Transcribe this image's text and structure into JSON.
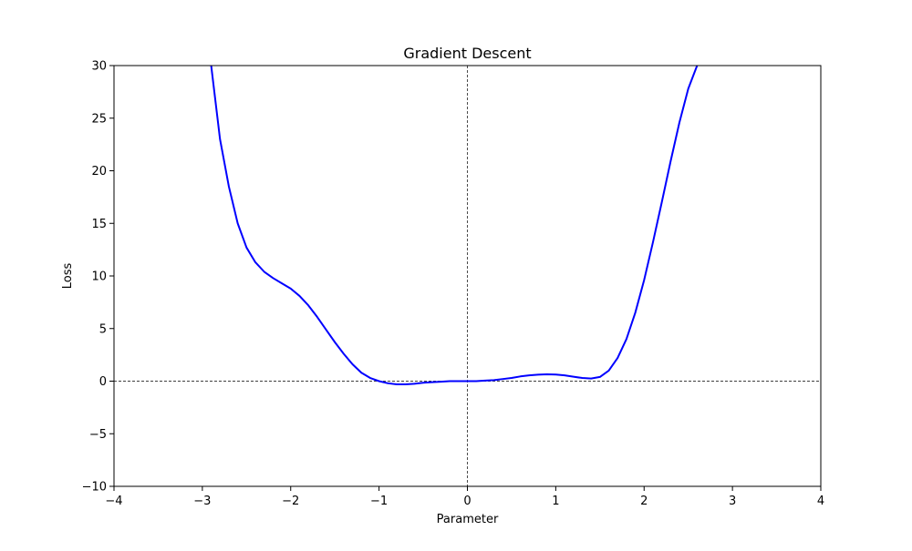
{
  "chart_data": {
    "type": "line",
    "title": "Gradient Descent",
    "xlabel": "Parameter",
    "ylabel": "Loss",
    "xlim": [
      -4,
      4
    ],
    "ylim": [
      -10,
      30
    ],
    "xticks": [
      -4,
      -3,
      -2,
      -1,
      0,
      1,
      2,
      3,
      4
    ],
    "xtick_labels": [
      "−4",
      "−3",
      "−2",
      "−1",
      "0",
      "1",
      "2",
      "3",
      "4"
    ],
    "yticks": [
      -10,
      -5,
      0,
      5,
      10,
      15,
      20,
      25,
      30
    ],
    "ytick_labels": [
      "−10",
      "−5",
      "0",
      "5",
      "10",
      "15",
      "20",
      "25",
      "30"
    ],
    "grid": false,
    "reference_lines": [
      {
        "orientation": "horizontal",
        "value": 0,
        "style": "dashed",
        "color": "#000000"
      },
      {
        "orientation": "vertical",
        "value": 0,
        "style": "dashed",
        "color": "#000000"
      }
    ],
    "series": [
      {
        "color": "#0000ff",
        "points": [
          {
            "x": -2.9,
            "y": 30.0
          },
          {
            "x": -2.8,
            "y": 23.0
          },
          {
            "x": -2.7,
            "y": 18.5
          },
          {
            "x": -2.6,
            "y": 15.0
          },
          {
            "x": -2.5,
            "y": 12.7
          },
          {
            "x": -2.4,
            "y": 11.3
          },
          {
            "x": -2.3,
            "y": 10.4
          },
          {
            "x": -2.2,
            "y": 9.8
          },
          {
            "x": -2.1,
            "y": 9.3
          },
          {
            "x": -2.0,
            "y": 8.8
          },
          {
            "x": -1.9,
            "y": 8.1
          },
          {
            "x": -1.8,
            "y": 7.2
          },
          {
            "x": -1.7,
            "y": 6.1
          },
          {
            "x": -1.6,
            "y": 4.9
          },
          {
            "x": -1.5,
            "y": 3.7
          },
          {
            "x": -1.4,
            "y": 2.6
          },
          {
            "x": -1.3,
            "y": 1.6
          },
          {
            "x": -1.2,
            "y": 0.8
          },
          {
            "x": -1.1,
            "y": 0.3
          },
          {
            "x": -1.0,
            "y": 0.0
          },
          {
            "x": -0.9,
            "y": -0.2
          },
          {
            "x": -0.8,
            "y": -0.3
          },
          {
            "x": -0.7,
            "y": -0.3
          },
          {
            "x": -0.6,
            "y": -0.25
          },
          {
            "x": -0.5,
            "y": -0.15
          },
          {
            "x": -0.4,
            "y": -0.1
          },
          {
            "x": -0.3,
            "y": -0.05
          },
          {
            "x": -0.2,
            "y": 0.0
          },
          {
            "x": -0.1,
            "y": 0.0
          },
          {
            "x": 0.0,
            "y": 0.0
          },
          {
            "x": 0.1,
            "y": 0.0
          },
          {
            "x": 0.2,
            "y": 0.05
          },
          {
            "x": 0.3,
            "y": 0.1
          },
          {
            "x": 0.4,
            "y": 0.2
          },
          {
            "x": 0.5,
            "y": 0.3
          },
          {
            "x": 0.6,
            "y": 0.45
          },
          {
            "x": 0.7,
            "y": 0.55
          },
          {
            "x": 0.8,
            "y": 0.62
          },
          {
            "x": 0.9,
            "y": 0.65
          },
          {
            "x": 1.0,
            "y": 0.63
          },
          {
            "x": 1.1,
            "y": 0.55
          },
          {
            "x": 1.2,
            "y": 0.42
          },
          {
            "x": 1.3,
            "y": 0.3
          },
          {
            "x": 1.4,
            "y": 0.25
          },
          {
            "x": 1.5,
            "y": 0.4
          },
          {
            "x": 1.6,
            "y": 1.0
          },
          {
            "x": 1.7,
            "y": 2.2
          },
          {
            "x": 1.8,
            "y": 4.0
          },
          {
            "x": 1.9,
            "y": 6.5
          },
          {
            "x": 2.0,
            "y": 9.6
          },
          {
            "x": 2.1,
            "y": 13.2
          },
          {
            "x": 2.2,
            "y": 17.0
          },
          {
            "x": 2.3,
            "y": 20.9
          },
          {
            "x": 2.4,
            "y": 24.6
          },
          {
            "x": 2.5,
            "y": 27.8
          },
          {
            "x": 2.6,
            "y": 30.0
          }
        ]
      }
    ]
  }
}
